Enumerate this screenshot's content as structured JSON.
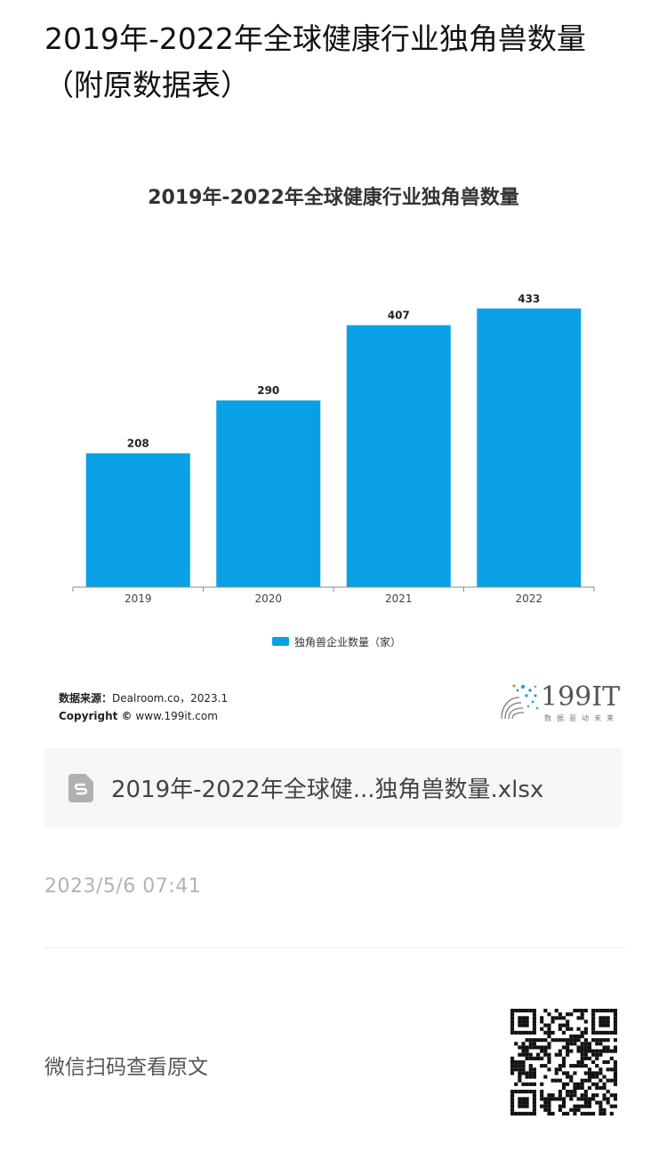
{
  "page": {
    "title": "2019年-2022年全球健康行业独角兽数量（附原数据表）"
  },
  "chart_data": {
    "type": "bar",
    "title": "2019年-2022年全球健康行业独角兽数量",
    "categories": [
      "2019",
      "2020",
      "2021",
      "2022"
    ],
    "series": [
      {
        "name": "独角兽企业数量（家）",
        "values": [
          208,
          290,
          407,
          433
        ]
      }
    ],
    "data_labels": [
      "208",
      "290",
      "407",
      "433"
    ],
    "ylim": [
      0,
      470
    ],
    "grid": false,
    "legend": "bottom",
    "bar_color": "#0aa0e6"
  },
  "source": {
    "label": "数据来源：",
    "value": "Dealroom.co，2023.1",
    "copyright_label": "Copyright ©",
    "copyright_value": "www.199it.com"
  },
  "brand": {
    "name": "199IT",
    "slogan": "数据驱动未来"
  },
  "file": {
    "name": "2019年-2022年全球健...独角兽数量.xlsx",
    "icon": "spreadsheet-file-icon"
  },
  "timestamp": "2023/5/6 07:41",
  "qr": {
    "hint": "微信扫码查看原文",
    "icon": "qr-code"
  }
}
